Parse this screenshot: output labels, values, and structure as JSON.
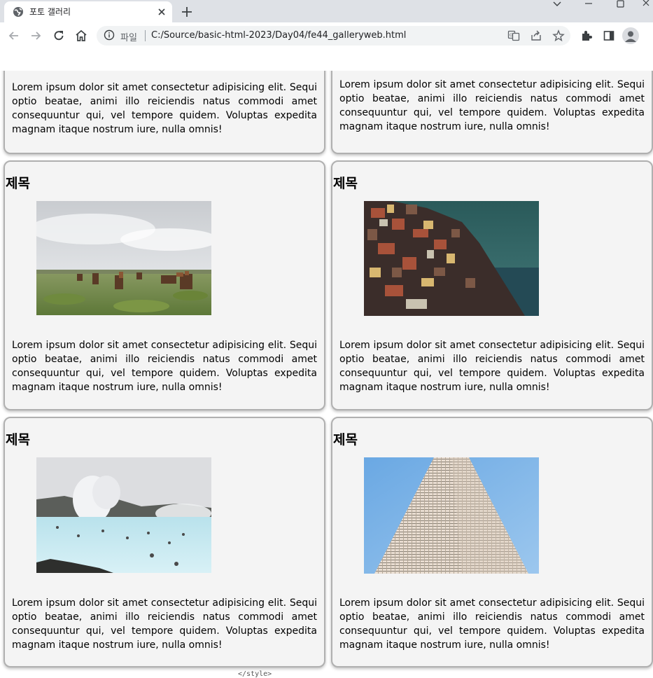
{
  "browser": {
    "tab_title": "포토 갤러리",
    "scheme_label": "파일",
    "url": "C:/Source/basic-html-2023/Day04/fe44_galleryweb.html"
  },
  "cards": [
    {
      "title": "",
      "text": "Lorem ipsum dolor sit amet consectetur adipisicing elit. Sequi optio beatae, animi illo reiciendis natus commodi amet consequuntur qui, vel tempore quidem. Voluptas expedita magnam itaque nostrum iure, nulla omnis!"
    },
    {
      "title": "",
      "text": "Lorem ipsum dolor sit amet consectetur adipisicing elit. Sequi optio beatae, animi illo reiciendis natus commodi amet consequuntur qui, vel tempore quidem. Voluptas expedita magnam itaque nostrum iure, nulla omnis!"
    },
    {
      "title": "제목",
      "image": "horses-in-field-photo",
      "text": "Lorem ipsum dolor sit amet consectetur adipisicing elit. Sequi optio beatae, animi illo reiciendis natus commodi amet consequuntur qui, vel tempore quidem. Voluptas expedita magnam itaque nostrum iure, nulla omnis!"
    },
    {
      "title": "제목",
      "image": "cliffside-village-photo",
      "text": "Lorem ipsum dolor sit amet consectetur adipisicing elit. Sequi optio beatae, animi illo reiciendis natus commodi amet consequuntur qui, vel tempore quidem. Voluptas expedita magnam itaque nostrum iure, nulla omnis!"
    },
    {
      "title": "제목",
      "image": "geothermal-lagoon-photo",
      "text": "Lorem ipsum dolor sit amet consectetur adipisicing elit. Sequi optio beatae, animi illo reiciendis natus commodi amet consequuntur qui, vel tempore quidem. Voluptas expedita magnam itaque nostrum iure, nulla omnis!"
    },
    {
      "title": "제목",
      "image": "skyscraper-facade-photo",
      "text": "Lorem ipsum dolor sit amet consectetur adipisicing elit. Sequi optio beatae, animi illo reiciendis natus commodi amet consequuntur qui, vel tempore quidem. Voluptas expedita magnam itaque nostrum iure, nulla omnis!"
    }
  ],
  "bottom_peek": "</style>",
  "colors": {
    "card_bg": "#f4f4f4",
    "card_border": "#b0b0b0",
    "chrome_bg": "#dee1e6"
  }
}
